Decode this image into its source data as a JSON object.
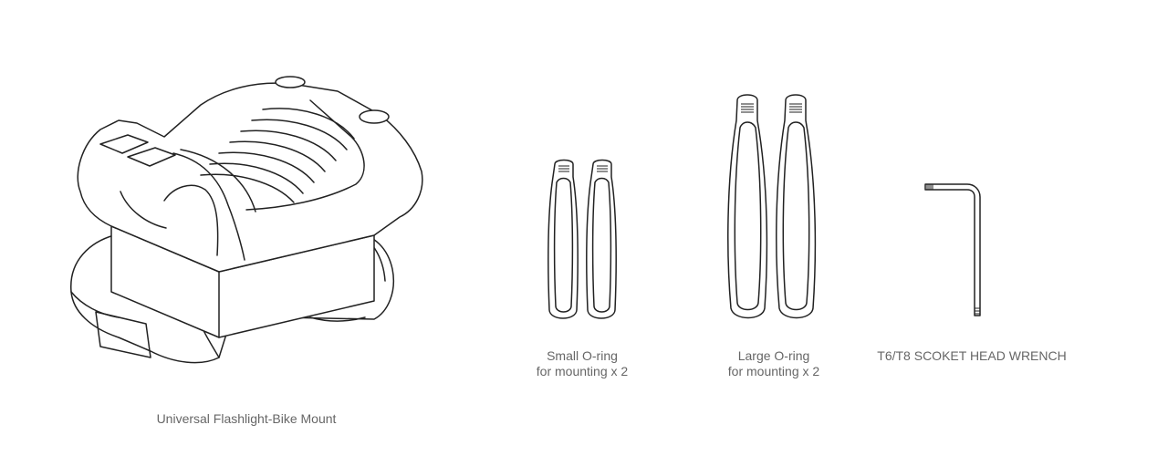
{
  "items": {
    "mount": {
      "caption": "Universal Flashlight-Bike Mount"
    },
    "small_oring": {
      "caption_line1": "Small O-ring",
      "caption_line2": "for mounting x 2"
    },
    "large_oring": {
      "caption_line1": "Large O-ring",
      "caption_line2": "for mounting x 2"
    },
    "wrench": {
      "caption": "T6/T8 SCOKET HEAD WRENCH"
    }
  },
  "colors": {
    "line": "#222222",
    "caption_text": "#666666",
    "background": "#ffffff"
  }
}
